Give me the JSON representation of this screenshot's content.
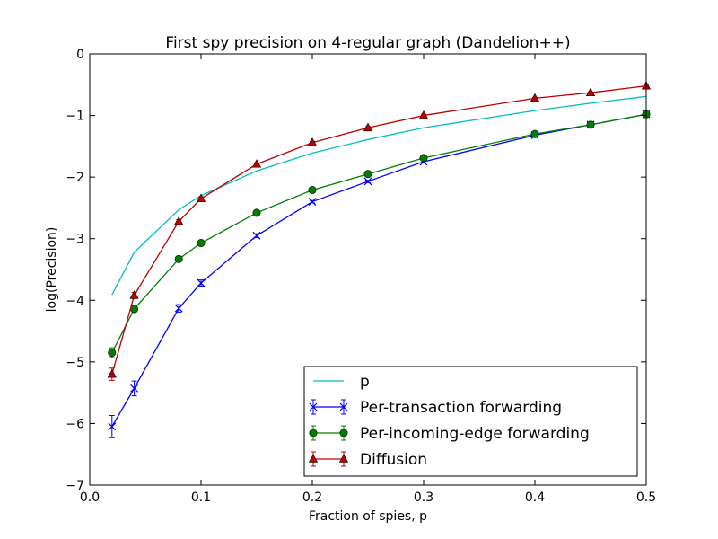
{
  "chart_data": {
    "type": "line",
    "title": "First spy precision on 4-regular graph (Dandelion++)",
    "xlabel": "Fraction of spies, p",
    "ylabel": "log(Precision)",
    "xlim": [
      0.0,
      0.5
    ],
    "ylim": [
      -7,
      0
    ],
    "xticks": [
      "0.0",
      "0.1",
      "0.2",
      "0.3",
      "0.4",
      "0.5"
    ],
    "yticks": [
      "0",
      "−1",
      "−2",
      "−3",
      "−4",
      "−5",
      "−6",
      "−7"
    ],
    "grid": false,
    "legend_position": "lower-right",
    "series": [
      {
        "name": "p",
        "color": "#00bfbf",
        "marker": "none",
        "x": [
          0.02,
          0.04,
          0.08,
          0.1,
          0.15,
          0.2,
          0.25,
          0.3,
          0.4,
          0.45,
          0.5
        ],
        "y": [
          -3.91,
          -3.22,
          -2.53,
          -2.3,
          -1.9,
          -1.61,
          -1.39,
          -1.2,
          -0.92,
          -0.8,
          -0.69
        ]
      },
      {
        "name": "Per-transaction forwarding",
        "color": "#0000ff",
        "marker": "x",
        "x": [
          0.02,
          0.04,
          0.08,
          0.1,
          0.15,
          0.2,
          0.25,
          0.3,
          0.4,
          0.45,
          0.5
        ],
        "y": [
          -6.05,
          -5.43,
          -4.13,
          -3.72,
          -2.95,
          -2.4,
          -2.07,
          -1.75,
          -1.32,
          -1.15,
          -0.98
        ],
        "err": [
          0.18,
          0.12,
          0.06,
          0.05,
          0.03,
          0.02,
          0.02,
          0.02,
          0.01,
          0.01,
          0.01
        ]
      },
      {
        "name": "Per-incoming-edge forwarding",
        "color": "#008000",
        "marker": "circle",
        "x": [
          0.02,
          0.04,
          0.08,
          0.1,
          0.15,
          0.2,
          0.25,
          0.3,
          0.4,
          0.45,
          0.5
        ],
        "y": [
          -4.85,
          -4.14,
          -3.33,
          -3.07,
          -2.58,
          -2.21,
          -1.95,
          -1.69,
          -1.3,
          -1.15,
          -0.98
        ],
        "err": [
          0.08,
          0.05,
          0.03,
          0.03,
          0.02,
          0.02,
          0.02,
          0.02,
          0.01,
          0.01,
          0.01
        ]
      },
      {
        "name": "Diffusion",
        "color": "#bf0000",
        "marker": "triangle",
        "x": [
          0.02,
          0.04,
          0.08,
          0.1,
          0.15,
          0.2,
          0.25,
          0.3,
          0.4,
          0.45,
          0.5
        ],
        "y": [
          -5.2,
          -3.92,
          -2.72,
          -2.35,
          -1.79,
          -1.44,
          -1.2,
          -1.0,
          -0.72,
          -0.63,
          -0.52
        ],
        "err": [
          0.1,
          0.05,
          0.03,
          0.03,
          0.02,
          0.02,
          0.02,
          0.02,
          0.01,
          0.01,
          0.01
        ]
      }
    ]
  }
}
